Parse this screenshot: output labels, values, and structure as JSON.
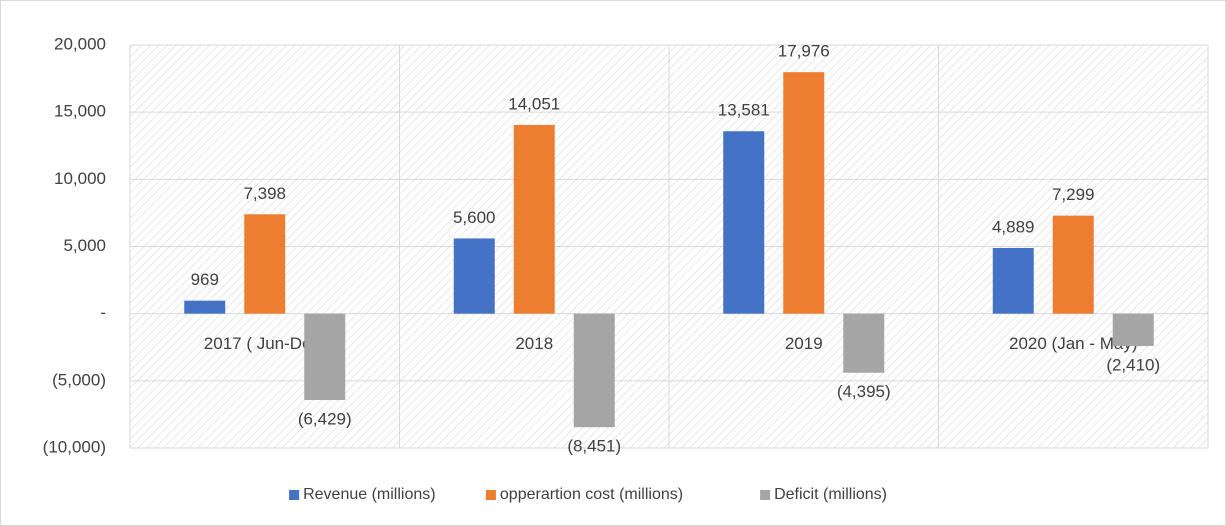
{
  "chart_data": {
    "type": "bar",
    "categories": [
      "2017 ( Jun-Dec)",
      "2018",
      "2019",
      "2020 (Jan - May)"
    ],
    "series": [
      {
        "name": "Revenue (millions)",
        "color": "#4472c4",
        "values": [
          969,
          5600,
          13581,
          4889
        ],
        "value_labels": [
          "969",
          "5,600",
          "13,581",
          "4,889"
        ]
      },
      {
        "name": "opperartion cost (millions)",
        "color": "#ed7d31",
        "values": [
          7398,
          14051,
          17976,
          7299
        ],
        "value_labels": [
          "7,398",
          "14,051",
          "17,976",
          "7,299"
        ]
      },
      {
        "name": "Deficit (millions)",
        "color": "#a5a5a5",
        "values": [
          -6429,
          -8451,
          -4395,
          -2410
        ],
        "value_labels": [
          "(6,429)",
          "(8,451)",
          "(4,395)",
          "(2,410)"
        ]
      }
    ],
    "ylim": [
      -10000,
      20000
    ],
    "yticks": [
      {
        "value": -10000,
        "label": "(10,000)"
      },
      {
        "value": -5000,
        "label": "(5,000)"
      },
      {
        "value": 0,
        "label": "-"
      },
      {
        "value": 5000,
        "label": "5,000"
      },
      {
        "value": 10000,
        "label": "10,000"
      },
      {
        "value": 15000,
        "label": "15,000"
      },
      {
        "value": 20000,
        "label": "20,000"
      }
    ],
    "grid": true,
    "legend": "bottom"
  }
}
